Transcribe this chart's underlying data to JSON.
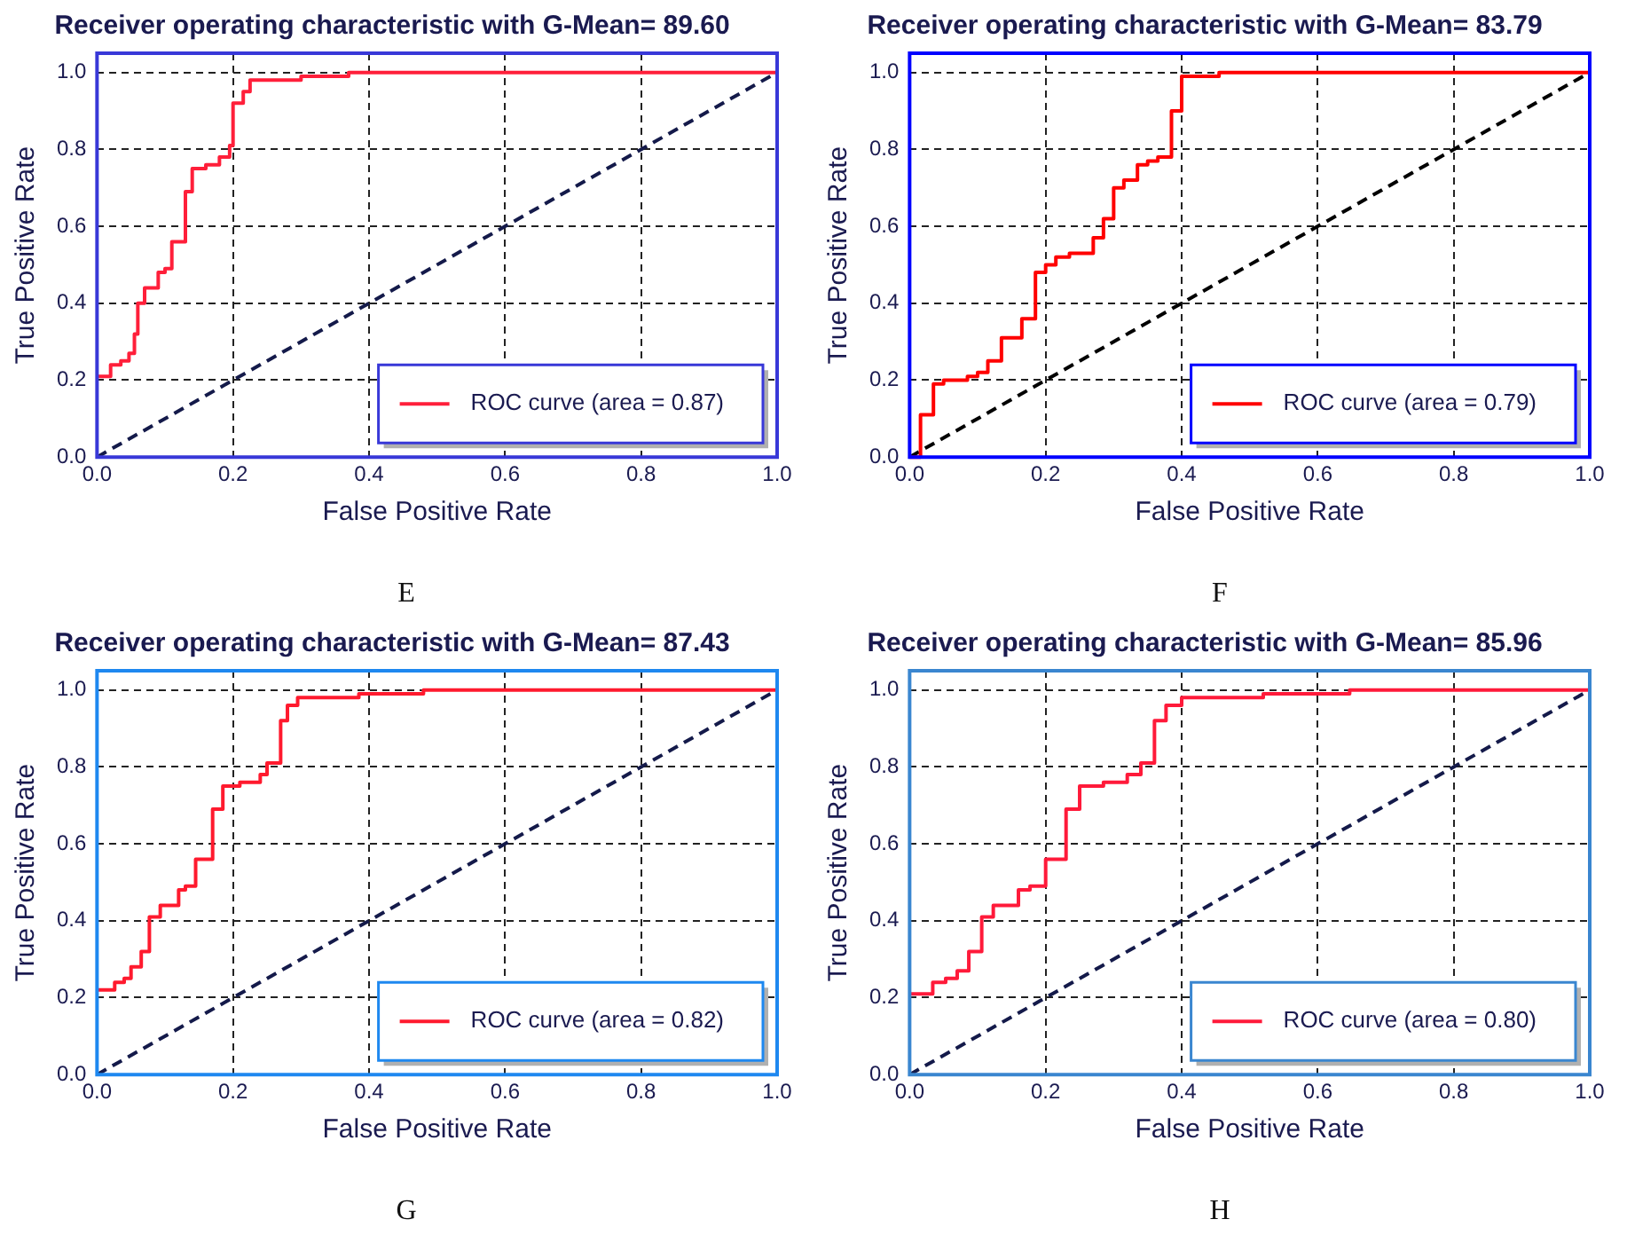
{
  "chart_data": [
    {
      "type": "line",
      "title": "Receiver operating characteristic with G-Mean= 89.60",
      "xlabel": "False Positive Rate",
      "ylabel": "True Positive Rate",
      "annotations": [
        "E"
      ],
      "xlim": [
        0,
        1
      ],
      "ylim": [
        0,
        1.05
      ],
      "xticks": [
        {
          "value": 0,
          "label": "0.0"
        },
        {
          "value": 0.2,
          "label": "0.2"
        },
        {
          "value": 0.4,
          "label": "0.4"
        },
        {
          "value": 0.6,
          "label": "0.6"
        },
        {
          "value": 0.8,
          "label": "0.8"
        },
        {
          "value": 1,
          "label": "1.0"
        }
      ],
      "yticks": [
        {
          "value": 0,
          "label": "0.0"
        },
        {
          "value": 0.2,
          "label": "0.2"
        },
        {
          "value": 0.4,
          "label": "0.4"
        },
        {
          "value": 0.6,
          "label": "0.6"
        },
        {
          "value": 0.8,
          "label": "0.8"
        },
        {
          "value": 1,
          "label": "1.0"
        }
      ],
      "grid": true,
      "legend": "bottom right",
      "marker": "none",
      "series": [
        {
          "name": "ROC curve (area = 0.87)",
          "color": "#ff1f3a",
          "line_style": "solid",
          "x": [
            0,
            0.02,
            0.02,
            0.035,
            0.035,
            0.047,
            0.047,
            0.055,
            0.055,
            0.06,
            0.06,
            0.07,
            0.07,
            0.09,
            0.09,
            0.1,
            0.1,
            0.11,
            0.11,
            0.13,
            0.13,
            0.14,
            0.14,
            0.16,
            0.16,
            0.18,
            0.18,
            0.195,
            0.195,
            0.2,
            0.2,
            0.215,
            0.215,
            0.225,
            0.225,
            0.3,
            0.3,
            0.37,
            0.37,
            1
          ],
          "values": [
            0.21,
            0.21,
            0.24,
            0.24,
            0.25,
            0.25,
            0.27,
            0.27,
            0.32,
            0.32,
            0.4,
            0.4,
            0.44,
            0.44,
            0.48,
            0.48,
            0.49,
            0.49,
            0.56,
            0.56,
            0.69,
            0.69,
            0.75,
            0.75,
            0.76,
            0.76,
            0.78,
            0.78,
            0.81,
            0.81,
            0.92,
            0.92,
            0.95,
            0.95,
            0.98,
            0.98,
            0.99,
            0.99,
            1,
            1
          ]
        },
        {
          "color": "#141a4a",
          "line_style": "dashed",
          "x": [
            0,
            1
          ],
          "values": [
            0,
            1
          ]
        }
      ]
    },
    {
      "type": "line",
      "title": "Receiver operating characteristic with G-Mean= 83.79",
      "xlabel": "False Positive Rate",
      "ylabel": "True Positive Rate",
      "annotations": [
        "F"
      ],
      "xlim": [
        0,
        1
      ],
      "ylim": [
        0,
        1.05
      ],
      "xticks": [
        {
          "value": 0,
          "label": "0.0"
        },
        {
          "value": 0.2,
          "label": "0.2"
        },
        {
          "value": 0.4,
          "label": "0.4"
        },
        {
          "value": 0.6,
          "label": "0.6"
        },
        {
          "value": 0.8,
          "label": "0.8"
        },
        {
          "value": 1,
          "label": "1.0"
        }
      ],
      "yticks": [
        {
          "value": 0,
          "label": "0.0"
        },
        {
          "value": 0.2,
          "label": "0.2"
        },
        {
          "value": 0.4,
          "label": "0.4"
        },
        {
          "value": 0.6,
          "label": "0.6"
        },
        {
          "value": 0.8,
          "label": "0.8"
        },
        {
          "value": 1,
          "label": "1.0"
        }
      ],
      "grid": true,
      "legend": "bottom right",
      "marker": "none",
      "series": [
        {
          "name": "ROC curve (area = 0.79)",
          "color": "#ff0000",
          "line_style": "solid",
          "x": [
            0,
            0.016,
            0.016,
            0.035,
            0.035,
            0.05,
            0.05,
            0.085,
            0.085,
            0.1,
            0.1,
            0.115,
            0.115,
            0.135,
            0.135,
            0.165,
            0.165,
            0.185,
            0.185,
            0.2,
            0.2,
            0.215,
            0.215,
            0.235,
            0.235,
            0.27,
            0.27,
            0.285,
            0.285,
            0.3,
            0.3,
            0.315,
            0.315,
            0.335,
            0.335,
            0.35,
            0.35,
            0.365,
            0.365,
            0.385,
            0.385,
            0.4,
            0.4,
            0.455,
            0.455,
            1
          ],
          "values": [
            0,
            0,
            0.11,
            0.11,
            0.19,
            0.19,
            0.2,
            0.2,
            0.21,
            0.21,
            0.22,
            0.22,
            0.25,
            0.25,
            0.31,
            0.31,
            0.36,
            0.36,
            0.48,
            0.48,
            0.5,
            0.5,
            0.52,
            0.52,
            0.53,
            0.53,
            0.57,
            0.57,
            0.62,
            0.62,
            0.7,
            0.7,
            0.72,
            0.72,
            0.76,
            0.76,
            0.77,
            0.77,
            0.78,
            0.78,
            0.9,
            0.9,
            0.99,
            0.99,
            1,
            1
          ]
        },
        {
          "color": "#000000",
          "line_style": "dashed",
          "x": [
            0,
            1
          ],
          "values": [
            0,
            1
          ]
        }
      ]
    },
    {
      "type": "line",
      "title": "Receiver operating characteristic with G-Mean= 87.43",
      "xlabel": "False Positive Rate",
      "ylabel": "True Positive Rate",
      "annotations": [
        "G"
      ],
      "xlim": [
        0,
        1
      ],
      "ylim": [
        0,
        1.05
      ],
      "xticks": [
        {
          "value": 0,
          "label": "0.0"
        },
        {
          "value": 0.2,
          "label": "0.2"
        },
        {
          "value": 0.4,
          "label": "0.4"
        },
        {
          "value": 0.6,
          "label": "0.6"
        },
        {
          "value": 0.8,
          "label": "0.8"
        },
        {
          "value": 1,
          "label": "1.0"
        }
      ],
      "yticks": [
        {
          "value": 0,
          "label": "0.0"
        },
        {
          "value": 0.2,
          "label": "0.2"
        },
        {
          "value": 0.4,
          "label": "0.4"
        },
        {
          "value": 0.6,
          "label": "0.6"
        },
        {
          "value": 0.8,
          "label": "0.8"
        },
        {
          "value": 1,
          "label": "1.0"
        }
      ],
      "grid": true,
      "legend": "bottom right",
      "marker": "none",
      "series": [
        {
          "name": "ROC curve (area = 0.82)",
          "color": "#ff1a2e",
          "line_style": "solid",
          "x": [
            0,
            0.026,
            0.026,
            0.04,
            0.04,
            0.05,
            0.05,
            0.065,
            0.065,
            0.077,
            0.077,
            0.093,
            0.093,
            0.12,
            0.12,
            0.13,
            0.13,
            0.145,
            0.145,
            0.17,
            0.17,
            0.185,
            0.185,
            0.21,
            0.21,
            0.24,
            0.24,
            0.25,
            0.25,
            0.27,
            0.27,
            0.28,
            0.28,
            0.295,
            0.295,
            0.385,
            0.385,
            0.48,
            0.48,
            1
          ],
          "values": [
            0.22,
            0.22,
            0.24,
            0.24,
            0.25,
            0.25,
            0.28,
            0.28,
            0.32,
            0.32,
            0.41,
            0.41,
            0.44,
            0.44,
            0.48,
            0.48,
            0.49,
            0.49,
            0.56,
            0.56,
            0.69,
            0.69,
            0.75,
            0.75,
            0.76,
            0.76,
            0.78,
            0.78,
            0.81,
            0.81,
            0.92,
            0.92,
            0.96,
            0.96,
            0.98,
            0.98,
            0.99,
            0.99,
            1,
            1
          ]
        },
        {
          "color": "#141a4a",
          "line_style": "dashed",
          "x": [
            0,
            1
          ],
          "values": [
            0,
            1
          ]
        }
      ]
    },
    {
      "type": "line",
      "title": "Receiver operating characteristic with G-Mean= 85.96",
      "xlabel": "False Positive Rate",
      "ylabel": "True Positive Rate",
      "annotations": [
        "H"
      ],
      "xlim": [
        0,
        1
      ],
      "ylim": [
        0,
        1.05
      ],
      "xticks": [
        {
          "value": 0,
          "label": "0.0"
        },
        {
          "value": 0.2,
          "label": "0.2"
        },
        {
          "value": 0.4,
          "label": "0.4"
        },
        {
          "value": 0.6,
          "label": "0.6"
        },
        {
          "value": 0.8,
          "label": "0.8"
        },
        {
          "value": 1,
          "label": "1.0"
        }
      ],
      "yticks": [
        {
          "value": 0,
          "label": "0.0"
        },
        {
          "value": 0.2,
          "label": "0.2"
        },
        {
          "value": 0.4,
          "label": "0.4"
        },
        {
          "value": 0.6,
          "label": "0.6"
        },
        {
          "value": 0.8,
          "label": "0.8"
        },
        {
          "value": 1,
          "label": "1.0"
        }
      ],
      "grid": true,
      "legend": "bottom right",
      "marker": "none",
      "series": [
        {
          "name": "ROC curve (area = 0.80)",
          "color": "#ff1a3a",
          "line_style": "solid",
          "x": [
            0,
            0.034,
            0.034,
            0.053,
            0.053,
            0.07,
            0.07,
            0.087,
            0.087,
            0.106,
            0.106,
            0.123,
            0.123,
            0.16,
            0.16,
            0.177,
            0.177,
            0.2,
            0.2,
            0.23,
            0.23,
            0.25,
            0.25,
            0.285,
            0.285,
            0.32,
            0.32,
            0.34,
            0.34,
            0.36,
            0.36,
            0.377,
            0.377,
            0.4,
            0.4,
            0.52,
            0.52,
            0.647,
            0.647,
            1
          ],
          "values": [
            0.21,
            0.21,
            0.24,
            0.24,
            0.25,
            0.25,
            0.27,
            0.27,
            0.32,
            0.32,
            0.41,
            0.41,
            0.44,
            0.44,
            0.48,
            0.48,
            0.49,
            0.49,
            0.56,
            0.56,
            0.69,
            0.69,
            0.75,
            0.75,
            0.76,
            0.76,
            0.78,
            0.78,
            0.81,
            0.81,
            0.92,
            0.92,
            0.96,
            0.96,
            0.98,
            0.98,
            0.99,
            0.99,
            1,
            1
          ]
        },
        {
          "color": "#141a4a",
          "line_style": "dashed",
          "x": [
            0,
            1
          ],
          "values": [
            0,
            1
          ]
        }
      ]
    }
  ]
}
